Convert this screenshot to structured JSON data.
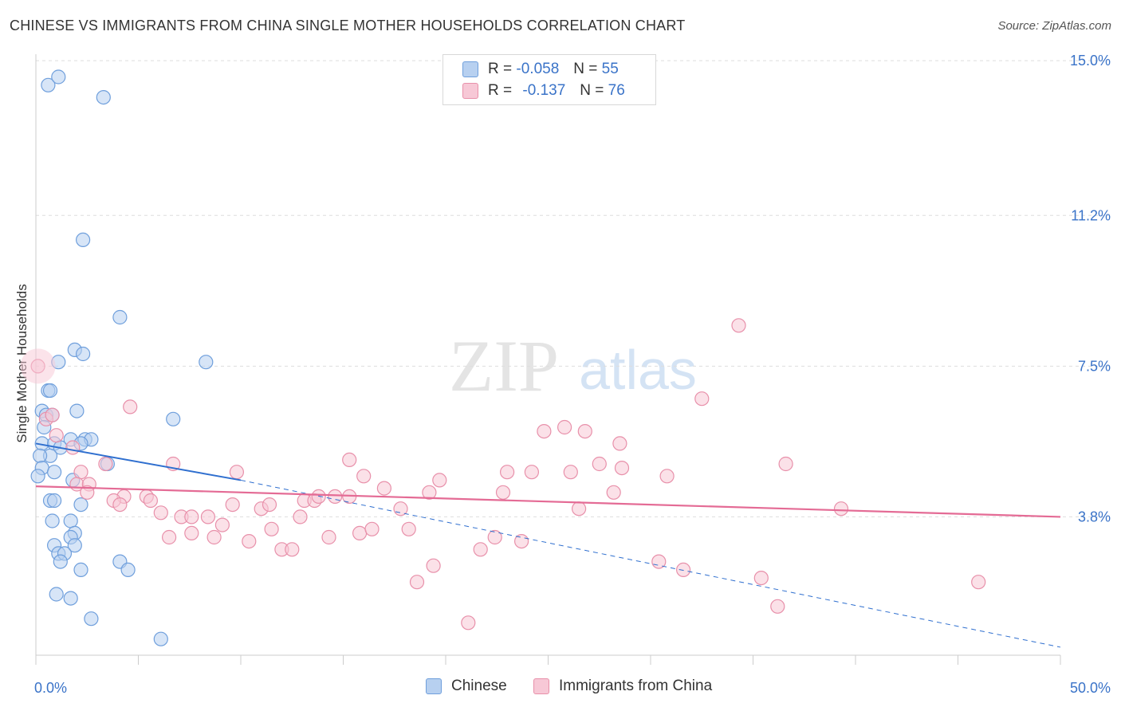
{
  "title": "CHINESE VS IMMIGRANTS FROM CHINA SINGLE MOTHER HOUSEHOLDS CORRELATION CHART",
  "source": "Source: ZipAtlas.com",
  "watermark": {
    "zip": "ZIP",
    "atlas": "atlas"
  },
  "legend_top": {
    "rows": [
      {
        "r_label": "R =",
        "r_value": "-0.058",
        "n_label": "N =",
        "n_value": "55"
      },
      {
        "r_label": "R =",
        "r_value": "-0.137",
        "n_label": "N =",
        "n_value": "76"
      }
    ]
  },
  "legend_bottom": {
    "items": [
      "Chinese",
      "Immigrants from China"
    ]
  },
  "colors": {
    "blue_fill": "#b7d0f0",
    "blue_stroke": "#6f9fdc",
    "blue_line": "#2f6fcf",
    "pink_fill": "#f7c8d6",
    "pink_stroke": "#e890aa",
    "pink_line": "#e46b95",
    "axis_text": "#3a73c8",
    "grid": "#dddddd"
  },
  "chart_data": {
    "type": "scatter",
    "title": "CHINESE VS IMMIGRANTS FROM CHINA SINGLE MOTHER HOUSEHOLDS CORRELATION CHART",
    "xlabel": "",
    "ylabel": "Single Mother Households",
    "x_tick_labels": [
      "0.0%",
      "50.0%"
    ],
    "y_tick_labels": [
      "3.8%",
      "7.5%",
      "11.2%",
      "15.0%"
    ],
    "y_ticks": [
      3.8,
      7.5,
      11.2,
      15.0
    ],
    "xlim": [
      0,
      50
    ],
    "ylim": [
      0,
      15.5
    ],
    "grid": "horizontal dashed",
    "legend": "top-center",
    "series": [
      {
        "name": "Chinese",
        "r": -0.058,
        "n": 55,
        "trend": {
          "x": [
            0,
            10
          ],
          "y": [
            5.6,
            4.7
          ],
          "dashed_to": [
            50,
            0.6
          ]
        },
        "points": [
          [
            0.6,
            14.4
          ],
          [
            1.1,
            14.6
          ],
          [
            3.3,
            14.1
          ],
          [
            2.3,
            10.6
          ],
          [
            4.1,
            8.7
          ],
          [
            1.9,
            7.9
          ],
          [
            2.3,
            7.8
          ],
          [
            1.1,
            7.6
          ],
          [
            8.3,
            7.6
          ],
          [
            0.6,
            6.9
          ],
          [
            0.7,
            6.9
          ],
          [
            0.3,
            6.4
          ],
          [
            0.5,
            6.3
          ],
          [
            0.8,
            6.3
          ],
          [
            2.0,
            6.4
          ],
          [
            6.7,
            6.2
          ],
          [
            0.4,
            6.0
          ],
          [
            1.7,
            5.7
          ],
          [
            2.4,
            5.7
          ],
          [
            2.7,
            5.7
          ],
          [
            0.3,
            5.6
          ],
          [
            0.9,
            5.6
          ],
          [
            2.2,
            5.6
          ],
          [
            1.2,
            5.5
          ],
          [
            0.7,
            5.3
          ],
          [
            0.2,
            5.3
          ],
          [
            0.3,
            5.0
          ],
          [
            3.5,
            5.1
          ],
          [
            0.1,
            4.8
          ],
          [
            0.9,
            4.9
          ],
          [
            1.8,
            4.7
          ],
          [
            0.7,
            4.2
          ],
          [
            0.9,
            4.2
          ],
          [
            2.2,
            4.1
          ],
          [
            0.8,
            3.7
          ],
          [
            1.7,
            3.7
          ],
          [
            1.9,
            3.4
          ],
          [
            1.7,
            3.3
          ],
          [
            0.9,
            3.1
          ],
          [
            1.9,
            3.1
          ],
          [
            1.1,
            2.9
          ],
          [
            1.4,
            2.9
          ],
          [
            1.2,
            2.7
          ],
          [
            4.1,
            2.7
          ],
          [
            2.2,
            2.5
          ],
          [
            4.5,
            2.5
          ],
          [
            1.0,
            1.9
          ],
          [
            1.7,
            1.8
          ],
          [
            2.7,
            1.3
          ],
          [
            6.1,
            0.8
          ]
        ]
      },
      {
        "name": "Immigrants from China",
        "r": -0.137,
        "n": 76,
        "trend": {
          "x": [
            0,
            50
          ],
          "y": [
            4.55,
            3.8
          ]
        },
        "points": [
          [
            0.1,
            7.5
          ],
          [
            0.5,
            6.2
          ],
          [
            0.8,
            6.3
          ],
          [
            1.0,
            5.8
          ],
          [
            1.8,
            5.5
          ],
          [
            4.6,
            6.5
          ],
          [
            2.2,
            4.9
          ],
          [
            3.4,
            5.1
          ],
          [
            2.0,
            4.6
          ],
          [
            2.6,
            4.6
          ],
          [
            2.5,
            4.4
          ],
          [
            4.3,
            4.3
          ],
          [
            5.4,
            4.3
          ],
          [
            3.8,
            4.2
          ],
          [
            4.1,
            4.1
          ],
          [
            5.6,
            4.2
          ],
          [
            6.7,
            5.1
          ],
          [
            6.1,
            3.9
          ],
          [
            7.1,
            3.8
          ],
          [
            7.6,
            3.8
          ],
          [
            8.4,
            3.8
          ],
          [
            6.5,
            3.3
          ],
          [
            7.6,
            3.4
          ],
          [
            8.7,
            3.3
          ],
          [
            9.1,
            3.6
          ],
          [
            9.6,
            4.1
          ],
          [
            10.4,
            3.2
          ],
          [
            9.8,
            4.9
          ],
          [
            11.0,
            4.0
          ],
          [
            11.4,
            4.1
          ],
          [
            11.5,
            3.5
          ],
          [
            12.0,
            3.0
          ],
          [
            12.5,
            3.0
          ],
          [
            12.9,
            3.8
          ],
          [
            13.1,
            4.2
          ],
          [
            13.6,
            4.2
          ],
          [
            13.8,
            4.3
          ],
          [
            14.3,
            3.3
          ],
          [
            14.6,
            4.3
          ],
          [
            15.3,
            4.3
          ],
          [
            15.3,
            5.2
          ],
          [
            15.8,
            3.4
          ],
          [
            16.0,
            4.8
          ],
          [
            16.4,
            3.5
          ],
          [
            17.0,
            4.5
          ],
          [
            17.8,
            4.0
          ],
          [
            18.2,
            3.5
          ],
          [
            18.6,
            2.2
          ],
          [
            19.2,
            4.4
          ],
          [
            19.4,
            2.6
          ],
          [
            19.7,
            4.7
          ],
          [
            21.1,
            1.2
          ],
          [
            21.7,
            3.0
          ],
          [
            22.4,
            3.3
          ],
          [
            22.8,
            4.4
          ],
          [
            23.0,
            4.9
          ],
          [
            23.7,
            3.2
          ],
          [
            24.2,
            4.9
          ],
          [
            24.8,
            5.9
          ],
          [
            25.8,
            6.0
          ],
          [
            26.1,
            4.9
          ],
          [
            26.5,
            4.0
          ],
          [
            26.8,
            5.9
          ],
          [
            27.5,
            5.1
          ],
          [
            28.2,
            4.4
          ],
          [
            28.5,
            5.6
          ],
          [
            28.6,
            5.0
          ],
          [
            30.4,
            2.7
          ],
          [
            30.8,
            4.8
          ],
          [
            31.6,
            2.5
          ],
          [
            32.5,
            6.7
          ],
          [
            34.3,
            8.5
          ],
          [
            35.4,
            2.3
          ],
          [
            36.2,
            1.6
          ],
          [
            36.6,
            5.1
          ],
          [
            39.3,
            4.0
          ],
          [
            46.0,
            2.2
          ]
        ]
      }
    ]
  }
}
